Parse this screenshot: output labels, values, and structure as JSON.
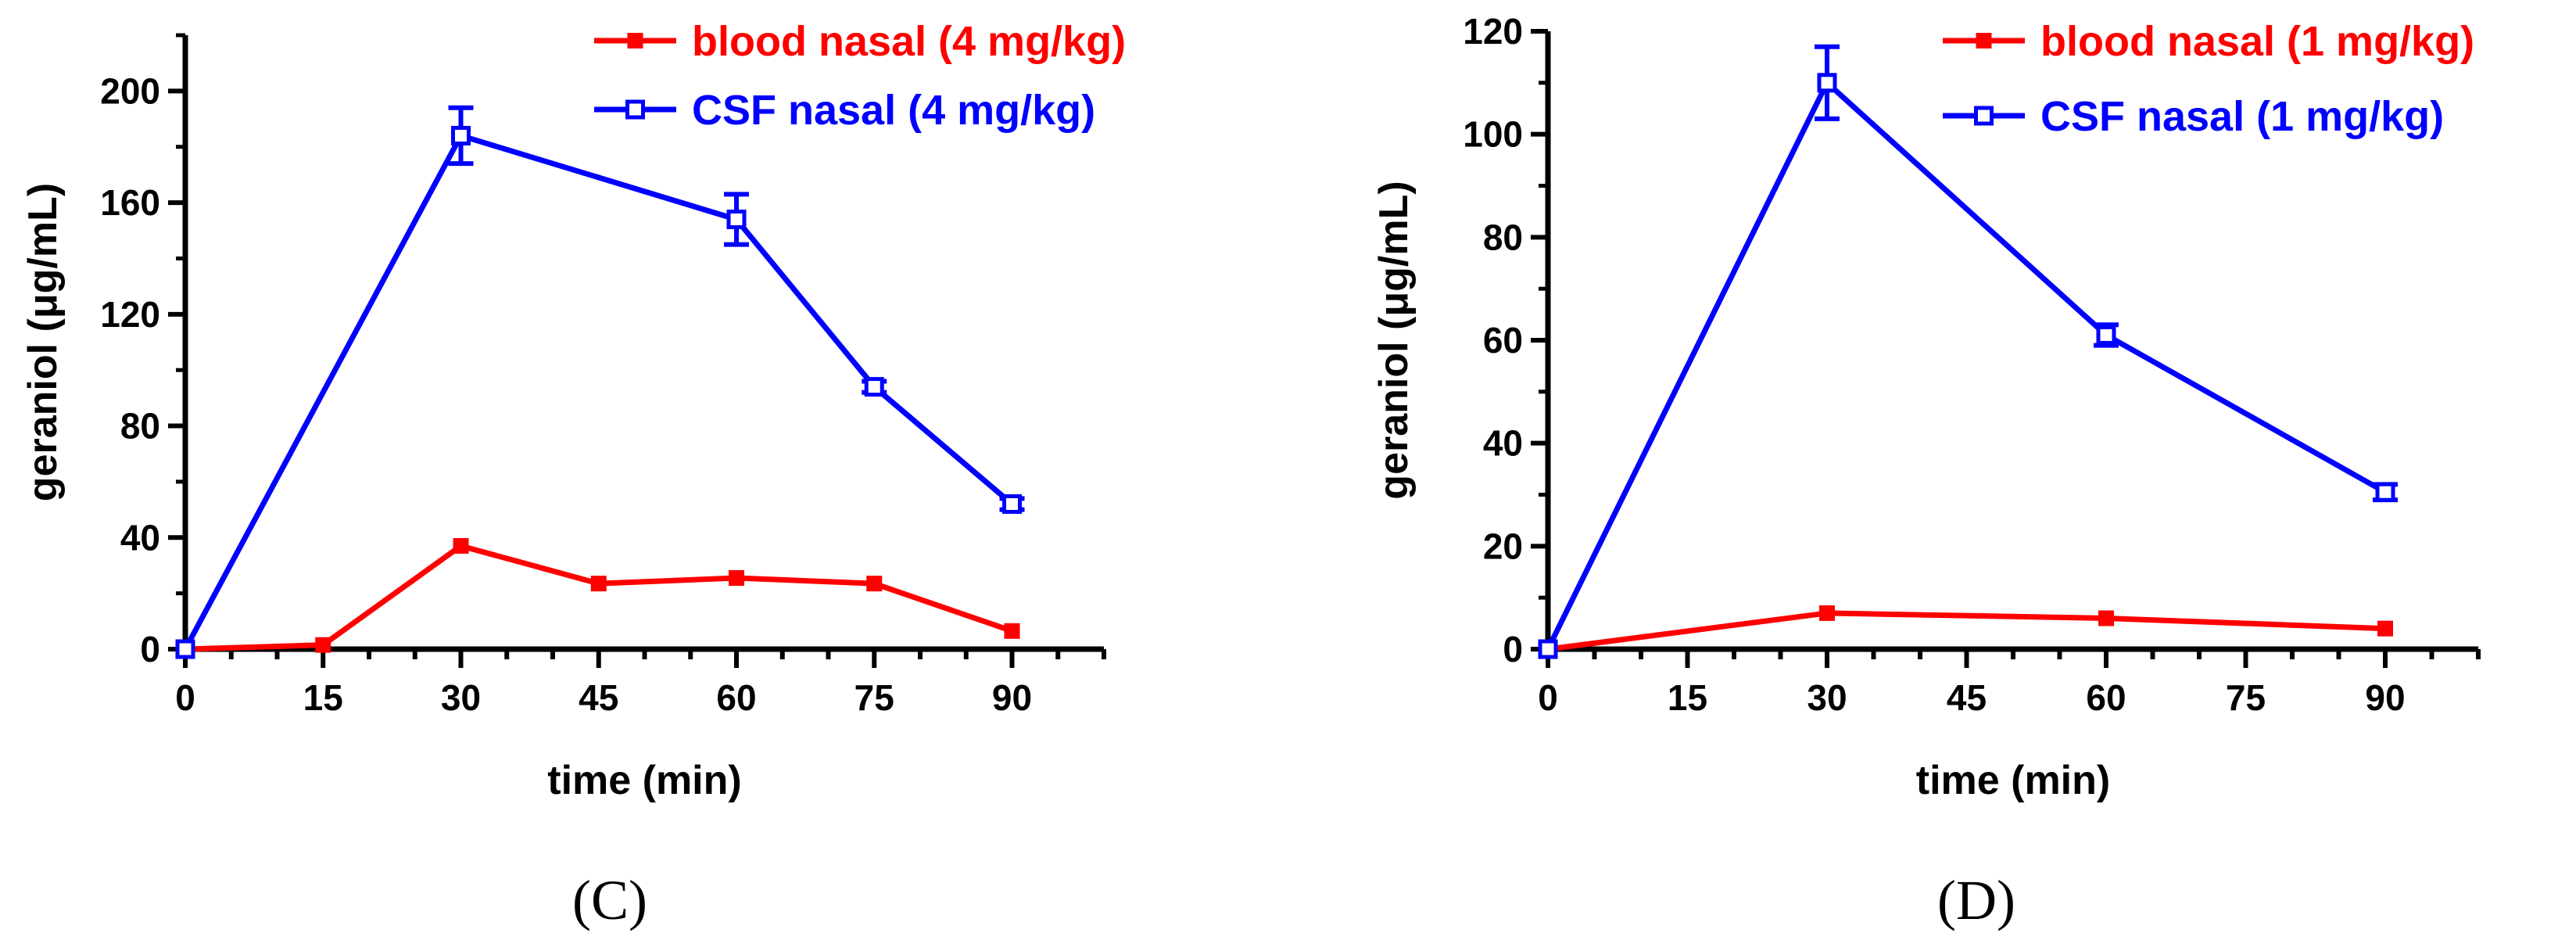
{
  "chart_data": [
    {
      "type": "line",
      "panel_label": "(C)",
      "xlabel": "time (min)",
      "ylabel": "geraniol (μg/mL)",
      "xlim": [
        0,
        100
      ],
      "ylim": [
        0,
        220
      ],
      "xticks": [
        0,
        15,
        30,
        45,
        60,
        75,
        90
      ],
      "yticks": [
        0,
        40,
        80,
        120,
        160,
        200
      ],
      "legend_position": "top-right",
      "series": [
        {
          "name": "blood nasal (4 mg/kg)",
          "color": "#ff0000",
          "marker": "filled-square",
          "x": [
            0,
            15,
            30,
            45,
            60,
            75,
            90
          ],
          "values": [
            0,
            1.5,
            37,
            23.5,
            25.5,
            23.5,
            6.5
          ],
          "errors": [
            0,
            0,
            0,
            0,
            0,
            0,
            0
          ]
        },
        {
          "name": "CSF nasal (4 mg/kg)",
          "color": "#0000ff",
          "marker": "open-square",
          "x": [
            0,
            30,
            60,
            75,
            90
          ],
          "values": [
            0,
            184,
            154,
            94,
            52
          ],
          "errors": [
            0,
            10,
            9,
            2,
            2
          ]
        }
      ]
    },
    {
      "type": "line",
      "panel_label": "(D)",
      "xlabel": "time (min)",
      "ylabel": "geraniol (μg/mL)",
      "xlim": [
        0,
        100
      ],
      "ylim": [
        0,
        120
      ],
      "xticks": [
        0,
        15,
        30,
        45,
        60,
        75,
        90
      ],
      "yticks": [
        0,
        20,
        40,
        60,
        80,
        100,
        120
      ],
      "legend_position": "top-right",
      "series": [
        {
          "name": "blood nasal (1 mg/kg)",
          "color": "#ff0000",
          "marker": "filled-square",
          "x": [
            0,
            30,
            60,
            90
          ],
          "values": [
            0,
            7,
            6,
            4
          ],
          "errors": [
            0,
            0,
            0,
            0
          ]
        },
        {
          "name": "CSF nasal (1 mg/kg)",
          "color": "#0000ff",
          "marker": "open-square",
          "x": [
            0,
            30,
            60,
            90
          ],
          "values": [
            0,
            110,
            61,
            30.5
          ],
          "errors": [
            0,
            7,
            2,
            1.5
          ]
        }
      ]
    }
  ]
}
